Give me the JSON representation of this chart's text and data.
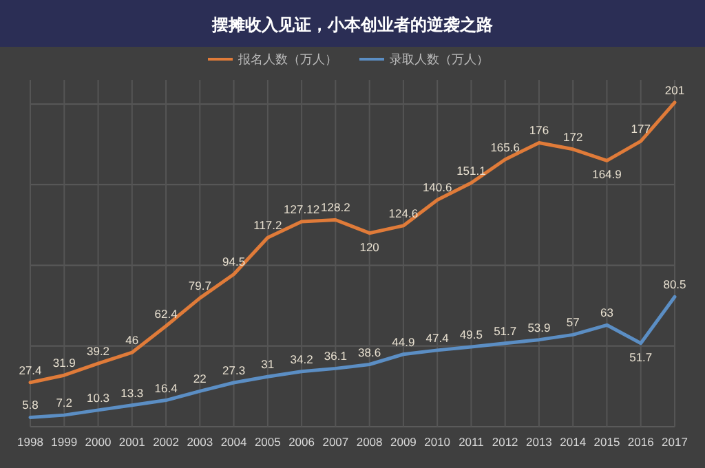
{
  "chart_data": {
    "type": "line",
    "title": "摆摊收入见证，小本创业者的逆袭之路",
    "categories": [
      "1998",
      "1999",
      "2000",
      "2001",
      "2002",
      "2003",
      "2004",
      "2005",
      "2006",
      "2007",
      "2008",
      "2009",
      "2010",
      "2011",
      "2012",
      "2013",
      "2014",
      "2015",
      "2016",
      "2017"
    ],
    "series": [
      {
        "name": "报名人数（万人）",
        "color": "#e07b39",
        "values": [
          27.4,
          31.9,
          39.2,
          46,
          62.4,
          79.7,
          94.5,
          117.2,
          127.12,
          128.2,
          120,
          124.6,
          140.6,
          151.1,
          165.6,
          176,
          172,
          164.9,
          177,
          201
        ]
      },
      {
        "name": "录取人数（万人）",
        "color": "#5b8ec4",
        "values": [
          5.8,
          7.2,
          10.3,
          13.3,
          16.4,
          22,
          27.3,
          31,
          34.2,
          36.1,
          38.6,
          44.9,
          47.4,
          49.5,
          51.7,
          53.9,
          57,
          63,
          51.7,
          80.5
        ]
      }
    ],
    "ylim": [
      0,
      215
    ],
    "yticks": [
      {
        "value": 0,
        "label": null
      },
      {
        "value": 50,
        "label": null
      },
      {
        "value": 100,
        "label": null
      },
      {
        "value": 150,
        "label": null
      },
      {
        "value": 200,
        "label": null
      }
    ],
    "tick_labels": "x",
    "grid": true,
    "legend": "top",
    "data_labels": true,
    "marker": "none",
    "line_style": "solid"
  }
}
